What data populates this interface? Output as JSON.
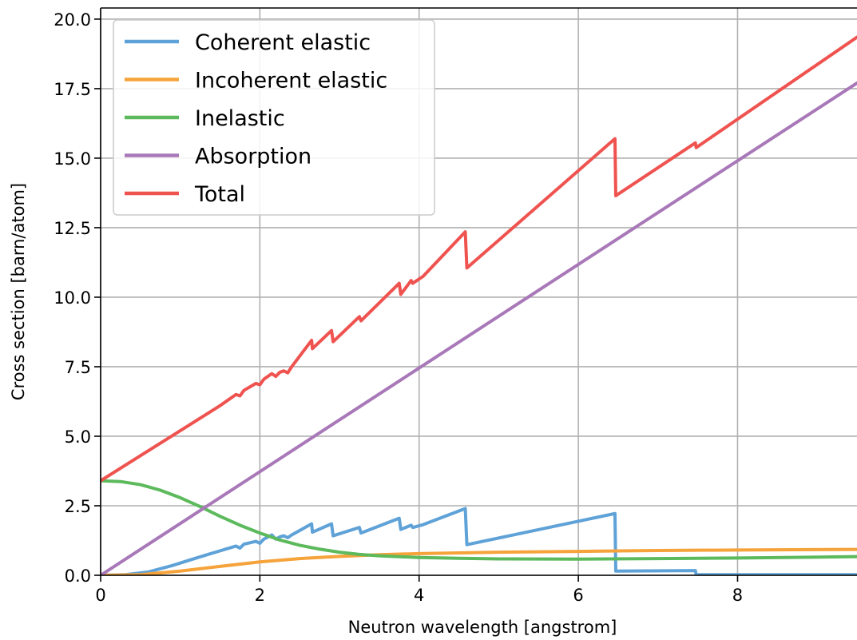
{
  "chart_data": {
    "type": "line",
    "title": "",
    "xlabel": "Neutron wavelength [angstrom]",
    "ylabel": "Cross section [barn/atom]",
    "xlim": [
      0,
      9.5
    ],
    "ylim": [
      0,
      20.4
    ],
    "xticks": [
      0,
      2,
      4,
      6,
      8
    ],
    "xtick_labels": [
      "0",
      "2",
      "4",
      "6",
      "8"
    ],
    "yticks": [
      0,
      2.5,
      5,
      7.5,
      10,
      12.5,
      15,
      17.5,
      20
    ],
    "ytick_labels": [
      "0.0",
      "2.5",
      "5.0",
      "7.5",
      "10.0",
      "12.5",
      "15.0",
      "17.5",
      "20.0"
    ],
    "grid": true,
    "legend_position": "top-left",
    "series": [
      {
        "name": "Coherent elastic",
        "color": "#5fa2d8",
        "points": [
          [
            0,
            0
          ],
          [
            0.3,
            0.02
          ],
          [
            0.6,
            0.12
          ],
          [
            0.9,
            0.35
          ],
          [
            1.2,
            0.62
          ],
          [
            1.5,
            0.88
          ],
          [
            1.7,
            1.05
          ],
          [
            1.75,
            0.98
          ],
          [
            1.8,
            1.12
          ],
          [
            1.95,
            1.22
          ],
          [
            2.0,
            1.15
          ],
          [
            2.05,
            1.3
          ],
          [
            2.15,
            1.45
          ],
          [
            2.2,
            1.3
          ],
          [
            2.25,
            1.38
          ],
          [
            2.3,
            1.42
          ],
          [
            2.35,
            1.35
          ],
          [
            2.4,
            1.45
          ],
          [
            2.65,
            1.85
          ],
          [
            2.66,
            1.55
          ],
          [
            2.9,
            1.85
          ],
          [
            2.92,
            1.42
          ],
          [
            3.25,
            1.72
          ],
          [
            3.27,
            1.52
          ],
          [
            3.75,
            2.05
          ],
          [
            3.77,
            1.65
          ],
          [
            3.9,
            1.8
          ],
          [
            3.92,
            1.72
          ],
          [
            4.05,
            1.82
          ],
          [
            4.58,
            2.4
          ],
          [
            4.6,
            1.1
          ],
          [
            6.46,
            2.22
          ],
          [
            6.47,
            0.15
          ],
          [
            7.47,
            0.17
          ],
          [
            7.48,
            0.02
          ],
          [
            9.5,
            0.02
          ]
        ]
      },
      {
        "name": "Incoherent elastic",
        "color": "#f5a33a",
        "points": [
          [
            0,
            0
          ],
          [
            0.5,
            0.02
          ],
          [
            1.0,
            0.15
          ],
          [
            1.5,
            0.32
          ],
          [
            2.0,
            0.48
          ],
          [
            2.5,
            0.6
          ],
          [
            3.0,
            0.68
          ],
          [
            3.5,
            0.74
          ],
          [
            4.0,
            0.78
          ],
          [
            5.0,
            0.83
          ],
          [
            6.0,
            0.86
          ],
          [
            7.0,
            0.89
          ],
          [
            8.0,
            0.91
          ],
          [
            9.5,
            0.93
          ]
        ]
      },
      {
        "name": "Inelastic",
        "color": "#5cba5c",
        "points": [
          [
            0,
            3.4
          ],
          [
            0.25,
            3.37
          ],
          [
            0.5,
            3.26
          ],
          [
            0.75,
            3.06
          ],
          [
            1.0,
            2.79
          ],
          [
            1.25,
            2.47
          ],
          [
            1.5,
            2.12
          ],
          [
            1.75,
            1.8
          ],
          [
            2.0,
            1.52
          ],
          [
            2.25,
            1.27
          ],
          [
            2.5,
            1.08
          ],
          [
            2.75,
            0.94
          ],
          [
            3.0,
            0.83
          ],
          [
            3.25,
            0.75
          ],
          [
            3.5,
            0.7
          ],
          [
            4.0,
            0.64
          ],
          [
            4.5,
            0.61
          ],
          [
            5.0,
            0.59
          ],
          [
            6.0,
            0.58
          ],
          [
            7.0,
            0.6
          ],
          [
            8.0,
            0.62
          ],
          [
            9.5,
            0.67
          ]
        ]
      },
      {
        "name": "Absorption",
        "color": "#a878b8",
        "points": [
          [
            0,
            0
          ],
          [
            9.5,
            17.7
          ]
        ]
      },
      {
        "name": "Total",
        "color": "#ef5350",
        "points": [
          [
            0,
            3.4
          ],
          [
            0.5,
            4.3
          ],
          [
            1.0,
            5.2
          ],
          [
            1.5,
            6.1
          ],
          [
            1.7,
            6.5
          ],
          [
            1.75,
            6.45
          ],
          [
            1.8,
            6.65
          ],
          [
            1.95,
            6.9
          ],
          [
            2.0,
            6.85
          ],
          [
            2.05,
            7.05
          ],
          [
            2.15,
            7.25
          ],
          [
            2.2,
            7.15
          ],
          [
            2.25,
            7.3
          ],
          [
            2.3,
            7.35
          ],
          [
            2.35,
            7.28
          ],
          [
            2.4,
            7.5
          ],
          [
            2.65,
            8.45
          ],
          [
            2.66,
            8.15
          ],
          [
            2.9,
            8.8
          ],
          [
            2.92,
            8.4
          ],
          [
            3.25,
            9.3
          ],
          [
            3.27,
            9.15
          ],
          [
            3.75,
            10.5
          ],
          [
            3.77,
            10.1
          ],
          [
            3.9,
            10.6
          ],
          [
            3.92,
            10.5
          ],
          [
            4.05,
            10.75
          ],
          [
            4.58,
            12.35
          ],
          [
            4.6,
            11.05
          ],
          [
            6.46,
            15.7
          ],
          [
            6.47,
            13.65
          ],
          [
            7.47,
            15.55
          ],
          [
            7.48,
            15.38
          ],
          [
            9.5,
            19.35
          ]
        ]
      }
    ]
  }
}
